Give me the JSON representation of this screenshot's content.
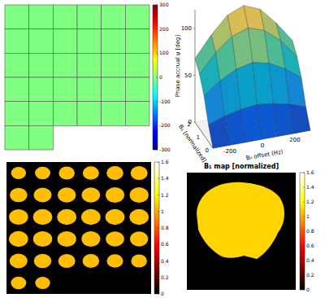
{
  "chart_data": [
    {
      "type": "mosaic",
      "cells": [
        0,
        0,
        0,
        0,
        0,
        0,
        0,
        0,
        0,
        0,
        0,
        0,
        0,
        0,
        0,
        0,
        0,
        0,
        0,
        0,
        0,
        0,
        0,
        0,
        0,
        0,
        0,
        0,
        0,
        0,
        0,
        0
      ],
      "colorbar": {
        "lim": [
          -300,
          300
        ],
        "ticks": [
          -300,
          -200,
          -100,
          0,
          100,
          200,
          300
        ],
        "colors": [
          "#000080",
          "#0000ff",
          "#0080ff",
          "#00ffff",
          "#80ff80",
          "#ffff00",
          "#ff8000",
          "#ff0000",
          "#800000"
        ]
      }
    },
    {
      "type": "surface",
      "x": [
        -300,
        -200,
        -100,
        0,
        100,
        200,
        300
      ],
      "y": [
        0,
        0.5,
        1,
        1.5,
        2
      ],
      "z": [
        [
          0,
          0,
          0,
          0,
          0,
          0,
          0
        ],
        [
          18,
          24,
          28,
          30,
          28,
          24,
          18
        ],
        [
          42,
          55,
          64,
          68,
          64,
          55,
          42
        ],
        [
          58,
          78,
          92,
          98,
          92,
          78,
          58
        ],
        [
          68,
          90,
          108,
          115,
          108,
          90,
          68
        ]
      ],
      "xlim": [
        -300,
        300
      ],
      "xticks": [
        -200,
        0,
        200
      ],
      "ylim": [
        0,
        2
      ],
      "yticks": [
        0,
        1,
        2
      ],
      "zlim": [
        0,
        120
      ],
      "zticks": [
        0,
        50,
        100
      ],
      "x_label": "B₀ offset (Hz)",
      "y_label": "B₁ [normalized]",
      "z_label": "Phase accrual ψ [deg]",
      "colors": [
        "#352a87",
        "#0363e1",
        "#1485d4",
        "#06a7c6",
        "#38b99e",
        "#92bf73",
        "#d9ba56",
        "#f9fb0e"
      ]
    },
    {
      "type": "mosaic",
      "cells": [
        1.05,
        1.05,
        1.05,
        1.05,
        1.05,
        1.05,
        1.05,
        1.05,
        1.05,
        1.05,
        1.05,
        1.05,
        1.05,
        1.05,
        1.05,
        1.05,
        1.05,
        1.05,
        1.05,
        1.05,
        1.05,
        1.05,
        1.05,
        1.05,
        1.05,
        1.05,
        1.05,
        1.05,
        1.05,
        1.05,
        1.05,
        1.05
      ],
      "colorbar": {
        "lim": [
          0,
          1.6
        ],
        "ticks": [
          0,
          0.2,
          0.4,
          0.6,
          0.8,
          1,
          1.2,
          1.4,
          1.6
        ],
        "colors": [
          "#000000",
          "#550000",
          "#aa0000",
          "#ff0000",
          "#ff5500",
          "#ffaa00",
          "#ffff00",
          "#ffff80",
          "#ffffff"
        ]
      }
    },
    {
      "type": "heatmap",
      "title": "B₁ map [normalized]",
      "cells": [
        1.1
      ],
      "colorbar": {
        "lim": [
          0,
          1.6
        ],
        "ticks": [
          0,
          0.2,
          0.4,
          0.6,
          0.8,
          1,
          1.2,
          1.4,
          1.6
        ],
        "colors": [
          "#000000",
          "#550000",
          "#aa0000",
          "#ff0000",
          "#ff5500",
          "#ffaa00",
          "#ffff00",
          "#ffff80",
          "#ffffff"
        ]
      }
    }
  ]
}
